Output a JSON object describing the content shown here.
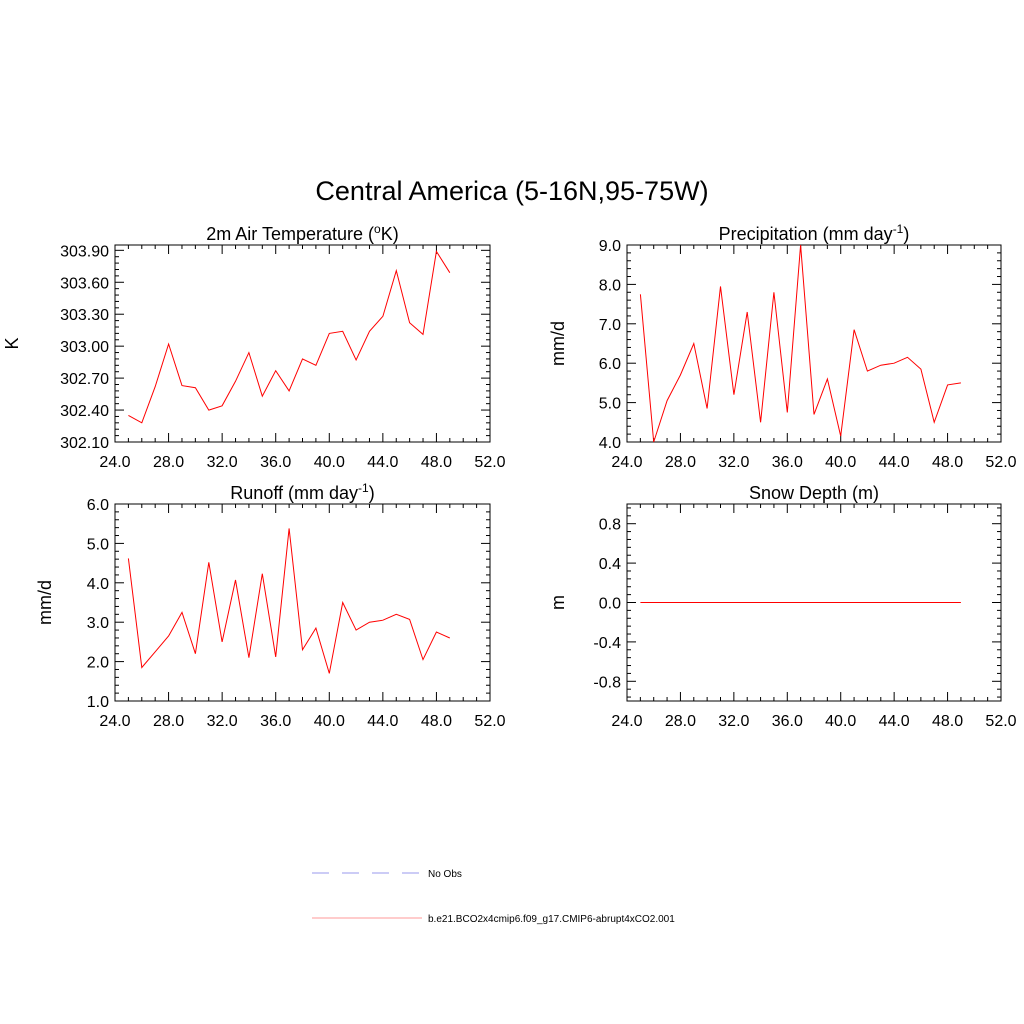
{
  "suptitle": "Central America (5-16N,95-75W)",
  "colors": {
    "model": "#ff0000",
    "obs": "#9999ee"
  },
  "legend": [
    {
      "label": "No Obs",
      "style": "dashed",
      "color": "#9999ee"
    },
    {
      "label": "b.e21.BCO2x4cmip6.f09_g17.CMIP6-abrupt4xCO2.001",
      "style": "solid",
      "color": "#ff9999"
    }
  ],
  "chart_data": [
    {
      "type": "line",
      "title": "2m Air Temperature (",
      "title_sup": "o",
      "title_after": "K)",
      "ylabel": "K",
      "xlim": [
        24,
        52
      ],
      "ylim": [
        302.1,
        303.95
      ],
      "xticks": [
        "24.0",
        "28.0",
        "32.0",
        "36.0",
        "40.0",
        "44.0",
        "48.0",
        "52.0"
      ],
      "yticks": [
        "302.10",
        "302.40",
        "302.70",
        "303.00",
        "303.30",
        "303.60",
        "303.90"
      ],
      "x": [
        25,
        26,
        27,
        28,
        29,
        30,
        31,
        32,
        33,
        34,
        35,
        36,
        37,
        38,
        39,
        40,
        41,
        42,
        43,
        44,
        45,
        46,
        47,
        48,
        49
      ],
      "series": [
        {
          "values": [
            302.35,
            302.28,
            302.62,
            303.02,
            302.63,
            302.61,
            302.4,
            302.44,
            302.67,
            302.94,
            302.53,
            302.77,
            302.58,
            302.88,
            302.82,
            303.12,
            303.14,
            302.87,
            303.14,
            303.28,
            303.71,
            303.22,
            303.11,
            303.89,
            303.69
          ]
        }
      ]
    },
    {
      "type": "line",
      "title": "Precipitation (mm day",
      "title_sup": "-1",
      "title_after": ")",
      "ylabel": "mm/d",
      "xlim": [
        24,
        52
      ],
      "ylim": [
        4.0,
        9.0
      ],
      "xticks": [
        "24.0",
        "28.0",
        "32.0",
        "36.0",
        "40.0",
        "44.0",
        "48.0",
        "52.0"
      ],
      "yticks": [
        "4.0",
        "5.0",
        "6.0",
        "7.0",
        "8.0",
        "9.0"
      ],
      "x": [
        25,
        26,
        27,
        28,
        29,
        30,
        31,
        32,
        33,
        34,
        35,
        36,
        37,
        38,
        39,
        40,
        41,
        42,
        43,
        44,
        45,
        46,
        47,
        48,
        49
      ],
      "series": [
        {
          "values": [
            7.75,
            4.0,
            5.05,
            5.7,
            6.5,
            4.85,
            7.95,
            5.2,
            7.3,
            4.5,
            7.8,
            4.75,
            9.0,
            4.7,
            5.6,
            4.15,
            6.85,
            5.8,
            5.95,
            6.0,
            6.15,
            5.85,
            4.5,
            5.45,
            5.5
          ]
        }
      ]
    },
    {
      "type": "line",
      "title": "Runoff (mm day",
      "title_sup": "-1",
      "title_after": ")",
      "ylabel": "mm/d",
      "xlim": [
        24,
        52
      ],
      "ylim": [
        1.0,
        6.0
      ],
      "xticks": [
        "24.0",
        "28.0",
        "32.0",
        "36.0",
        "40.0",
        "44.0",
        "48.0",
        "52.0"
      ],
      "yticks": [
        "1.0",
        "2.0",
        "3.0",
        "4.0",
        "5.0",
        "6.0"
      ],
      "x": [
        25,
        26,
        27,
        28,
        29,
        30,
        31,
        32,
        33,
        34,
        35,
        36,
        37,
        38,
        39,
        40,
        41,
        42,
        43,
        44,
        45,
        46,
        47,
        48,
        49
      ],
      "series": [
        {
          "values": [
            4.62,
            1.85,
            2.25,
            2.65,
            3.25,
            2.2,
            4.52,
            2.5,
            4.07,
            2.1,
            4.23,
            2.12,
            5.38,
            2.3,
            2.85,
            1.7,
            3.5,
            2.8,
            3.0,
            3.05,
            3.2,
            3.07,
            2.05,
            2.75,
            2.6
          ]
        }
      ]
    },
    {
      "type": "line",
      "title": "Snow Depth (m)",
      "title_sup": "",
      "title_after": "",
      "ylabel": "m",
      "xlim": [
        24,
        52
      ],
      "ylim": [
        -1.0,
        1.0
      ],
      "xticks": [
        "24.0",
        "28.0",
        "32.0",
        "36.0",
        "40.0",
        "44.0",
        "48.0",
        "52.0"
      ],
      "yticks": [
        "-0.8",
        "-0.4",
        "0.0",
        "0.4",
        "0.8"
      ],
      "x": [
        25,
        26,
        27,
        28,
        29,
        30,
        31,
        32,
        33,
        34,
        35,
        36,
        37,
        38,
        39,
        40,
        41,
        42,
        43,
        44,
        45,
        46,
        47,
        48,
        49
      ],
      "series": [
        {
          "values": [
            0,
            0,
            0,
            0,
            0,
            0,
            0,
            0,
            0,
            0,
            0,
            0,
            0,
            0,
            0,
            0,
            0,
            0,
            0,
            0,
            0,
            0,
            0,
            0,
            0
          ]
        }
      ]
    }
  ]
}
